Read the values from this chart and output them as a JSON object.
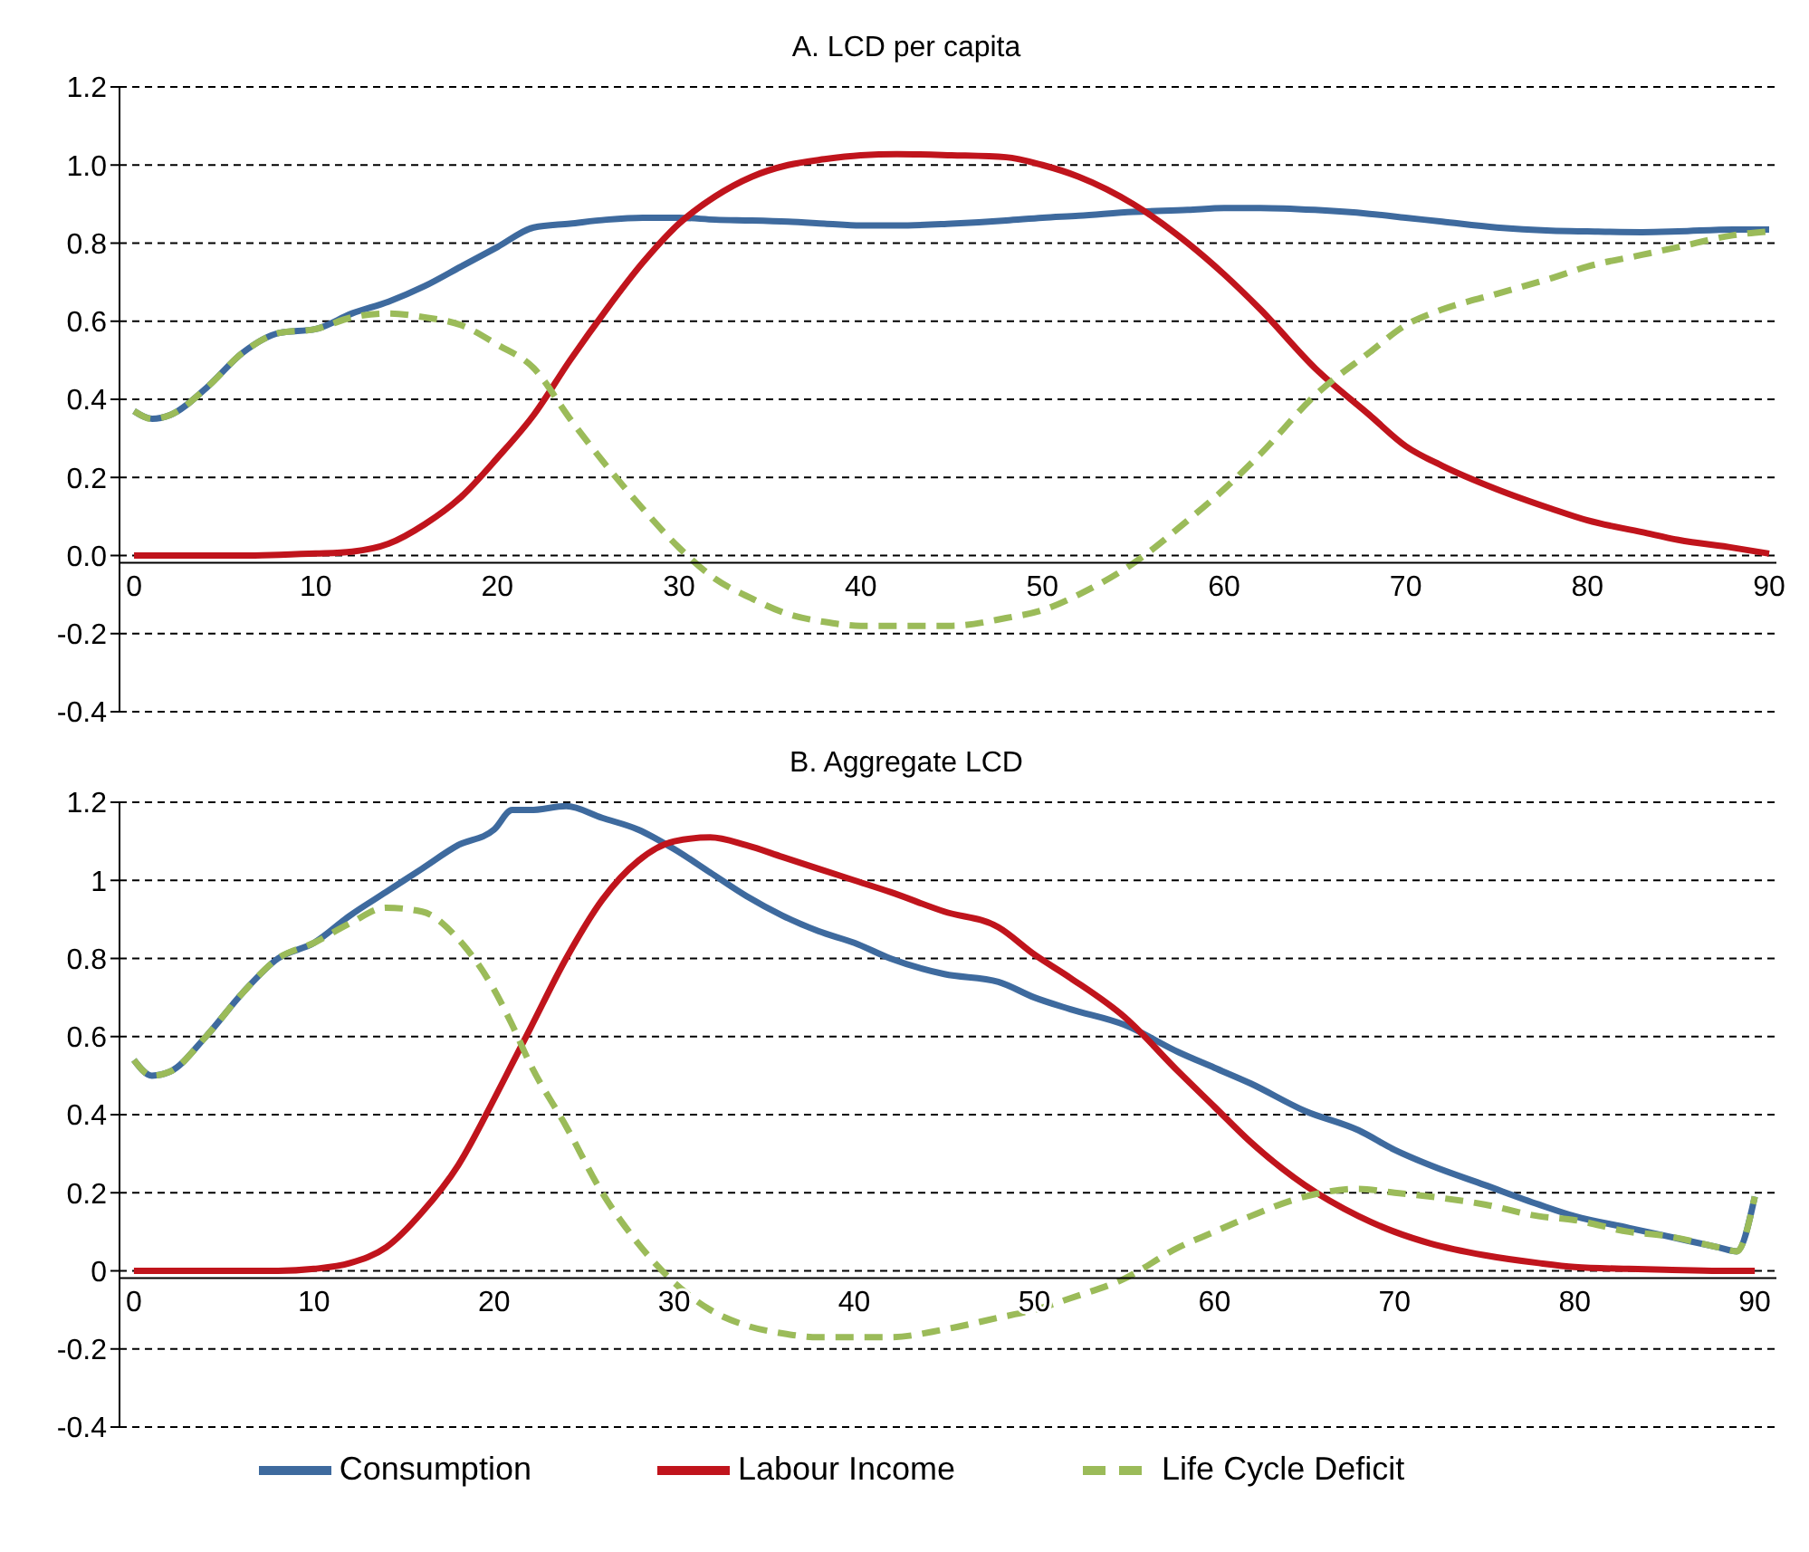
{
  "chart_data": [
    {
      "type": "line",
      "title": "A. LCD per capita",
      "x": [
        0,
        1,
        2,
        4,
        6,
        8,
        10,
        12,
        14,
        16,
        18,
        20,
        22,
        24,
        26,
        28,
        30,
        32,
        34,
        36,
        38,
        40,
        42,
        45,
        48,
        50,
        52,
        55,
        58,
        60,
        62,
        65,
        68,
        70,
        72,
        75,
        78,
        80,
        83,
        85,
        88,
        90
      ],
      "series": [
        {
          "color": "#3e6a9e",
          "line_style": "solid",
          "values": [
            0.37,
            0.35,
            0.36,
            0.43,
            0.52,
            0.57,
            0.58,
            0.62,
            0.65,
            0.69,
            0.74,
            0.79,
            0.84,
            0.85,
            0.86,
            0.865,
            0.865,
            0.86,
            0.858,
            0.855,
            0.85,
            0.845,
            0.845,
            0.85,
            0.858,
            0.865,
            0.87,
            0.88,
            0.885,
            0.89,
            0.89,
            0.885,
            0.875,
            0.865,
            0.855,
            0.84,
            0.832,
            0.83,
            0.828,
            0.83,
            0.835,
            0.835
          ]
        },
        {
          "color": "#c0141c",
          "line_style": "solid",
          "values": [
            0,
            0,
            0,
            0,
            0,
            0.002,
            0.005,
            0.01,
            0.03,
            0.08,
            0.15,
            0.25,
            0.36,
            0.5,
            0.63,
            0.75,
            0.85,
            0.92,
            0.97,
            1.0,
            1.015,
            1.025,
            1.028,
            1.025,
            1.02,
            1.0,
            0.97,
            0.9,
            0.8,
            0.72,
            0.63,
            0.48,
            0.36,
            0.28,
            0.23,
            0.17,
            0.12,
            0.09,
            0.06,
            0.04,
            0.02,
            0.005
          ]
        },
        {
          "color": "#9bbb59",
          "line_style": "dashed",
          "values": [
            0.37,
            0.35,
            0.36,
            0.43,
            0.52,
            0.57,
            0.58,
            0.61,
            0.62,
            0.61,
            0.59,
            0.54,
            0.48,
            0.35,
            0.23,
            0.12,
            0.02,
            -0.06,
            -0.11,
            -0.15,
            -0.17,
            -0.18,
            -0.18,
            -0.18,
            -0.16,
            -0.14,
            -0.1,
            -0.02,
            0.09,
            0.17,
            0.26,
            0.41,
            0.52,
            0.59,
            0.63,
            0.67,
            0.71,
            0.74,
            0.77,
            0.79,
            0.82,
            0.83
          ]
        }
      ],
      "xlim": [
        -0.8,
        90.4
      ],
      "xticks": [
        0,
        10,
        20,
        30,
        40,
        50,
        60,
        70,
        80,
        90
      ],
      "ylim": [
        -0.4,
        1.2
      ],
      "yticks": [
        {
          "value": -0.4,
          "label": "-0.4"
        },
        {
          "value": -0.2,
          "label": "-0.2"
        },
        {
          "value": 0,
          "label": "0.0"
        },
        {
          "value": 0.2,
          "label": "0.2"
        },
        {
          "value": 0.4,
          "label": "0.4"
        },
        {
          "value": 0.6,
          "label": "0.6"
        },
        {
          "value": 0.8,
          "label": "0.8"
        },
        {
          "value": 1.0,
          "label": "1.0"
        },
        {
          "value": 1.2,
          "label": "1.2"
        }
      ],
      "grid": "y",
      "marker": "none"
    },
    {
      "type": "line",
      "title": "B. Aggregate LCD",
      "x": [
        0,
        1,
        2,
        4,
        6,
        8,
        10,
        12,
        14,
        16,
        18,
        20,
        21,
        22,
        24,
        26,
        28,
        30,
        32,
        34,
        36,
        38,
        40,
        42,
        45,
        48,
        50,
        52,
        55,
        58,
        60,
        62,
        65,
        68,
        70,
        72,
        75,
        78,
        80,
        83,
        85,
        88,
        89,
        90
      ],
      "series": [
        {
          "name": "Consumption",
          "color": "#3e6a9e",
          "line_style": "solid",
          "values": [
            0.54,
            0.5,
            0.51,
            0.6,
            0.71,
            0.8,
            0.84,
            0.91,
            0.97,
            1.03,
            1.09,
            1.13,
            1.18,
            1.18,
            1.19,
            1.16,
            1.13,
            1.08,
            1.02,
            0.96,
            0.91,
            0.87,
            0.84,
            0.8,
            0.76,
            0.74,
            0.7,
            0.67,
            0.63,
            0.56,
            0.52,
            0.48,
            0.41,
            0.36,
            0.31,
            0.27,
            0.22,
            0.17,
            0.14,
            0.11,
            0.09,
            0.06,
            0.05,
            0.19
          ]
        },
        {
          "name": "Labour Income",
          "color": "#c0141c",
          "line_style": "solid",
          "values": [
            0,
            0,
            0,
            0,
            0,
            0,
            0.005,
            0.02,
            0.06,
            0.15,
            0.27,
            0.44,
            0.53,
            0.62,
            0.8,
            0.95,
            1.05,
            1.1,
            1.11,
            1.09,
            1.06,
            1.03,
            1.0,
            0.97,
            0.92,
            0.88,
            0.81,
            0.75,
            0.65,
            0.51,
            0.42,
            0.33,
            0.22,
            0.14,
            0.1,
            0.07,
            0.04,
            0.02,
            0.01,
            0.005,
            0.003,
            0,
            0,
            0
          ]
        },
        {
          "name": "Life Cycle Deficit",
          "color": "#9bbb59",
          "line_style": "dashed",
          "values": [
            0.54,
            0.5,
            0.51,
            0.6,
            0.71,
            0.8,
            0.84,
            0.89,
            0.93,
            0.92,
            0.85,
            0.72,
            0.63,
            0.53,
            0.37,
            0.2,
            0.07,
            -0.03,
            -0.1,
            -0.14,
            -0.16,
            -0.17,
            -0.17,
            -0.17,
            -0.15,
            -0.12,
            -0.1,
            -0.07,
            -0.02,
            0.06,
            0.1,
            0.14,
            0.19,
            0.21,
            0.2,
            0.19,
            0.17,
            0.14,
            0.13,
            0.1,
            0.09,
            0.06,
            0.05,
            0.19
          ]
        }
      ],
      "xlim": [
        -0.8,
        91.2
      ],
      "xticks": [
        0,
        10,
        20,
        30,
        40,
        50,
        60,
        70,
        80,
        90
      ],
      "ylim": [
        -0.4,
        1.2
      ],
      "yticks": [
        -0.4,
        -0.2,
        0,
        0.2,
        0.4,
        0.6,
        0.8,
        1,
        1.2
      ],
      "grid": "y",
      "marker": "none",
      "legend": "bottom"
    }
  ]
}
